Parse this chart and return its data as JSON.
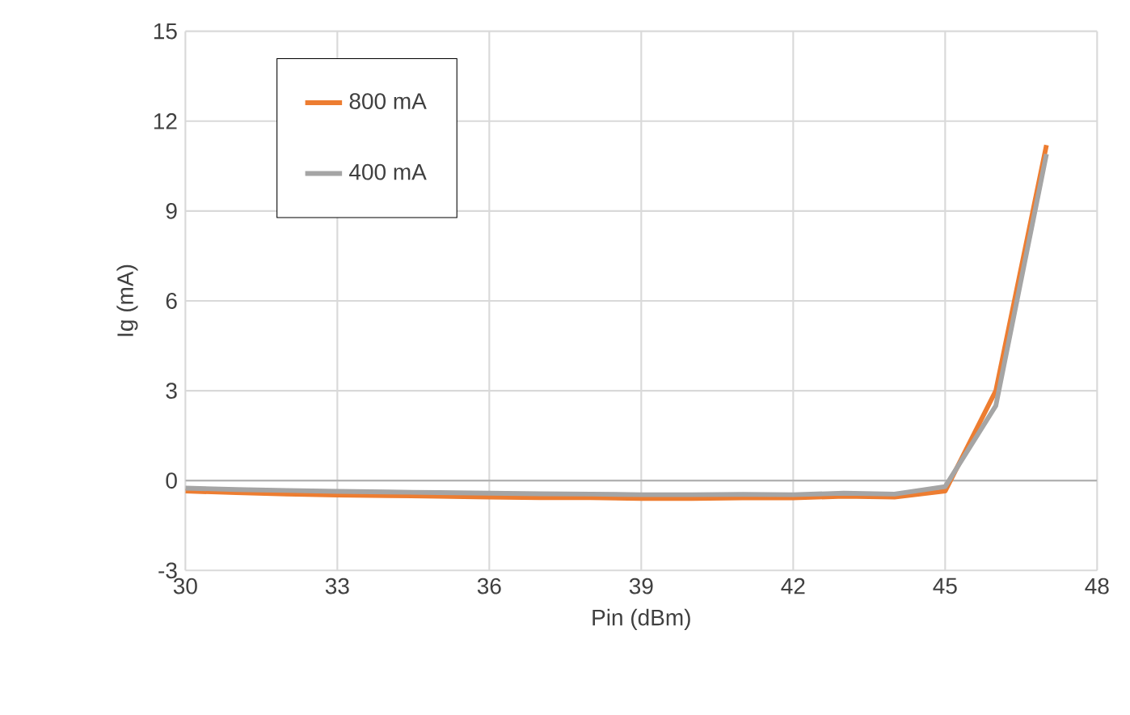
{
  "chart_data": {
    "type": "line",
    "xlabel": "Pin (dBm)",
    "ylabel": "Ig (mA)",
    "x": [
      30,
      31,
      32,
      33,
      34,
      35,
      36,
      37,
      38,
      39,
      40,
      41,
      42,
      43,
      44,
      45,
      46,
      47
    ],
    "series": [
      {
        "name": "800 mA",
        "color": "#ed7d31",
        "values": [
          -0.35,
          -0.4,
          -0.45,
          -0.48,
          -0.5,
          -0.52,
          -0.55,
          -0.57,
          -0.57,
          -0.6,
          -0.6,
          -0.58,
          -0.58,
          -0.52,
          -0.55,
          -0.35,
          3.0,
          11.2
        ]
      },
      {
        "name": "400 mA",
        "color": "#a5a5a5",
        "values": [
          -0.25,
          -0.3,
          -0.33,
          -0.36,
          -0.38,
          -0.4,
          -0.42,
          -0.44,
          -0.45,
          -0.47,
          -0.47,
          -0.46,
          -0.47,
          -0.42,
          -0.45,
          -0.2,
          2.5,
          10.9
        ]
      }
    ],
    "xlim": [
      30,
      48
    ],
    "xticks": [
      30,
      33,
      36,
      39,
      42,
      45,
      48
    ],
    "ylim": [
      -3,
      15
    ],
    "yticks": [
      -3,
      0,
      3,
      6,
      9,
      12,
      15
    ],
    "grid": true,
    "legend": "top left",
    "marker": "none",
    "line_style": "solid"
  }
}
